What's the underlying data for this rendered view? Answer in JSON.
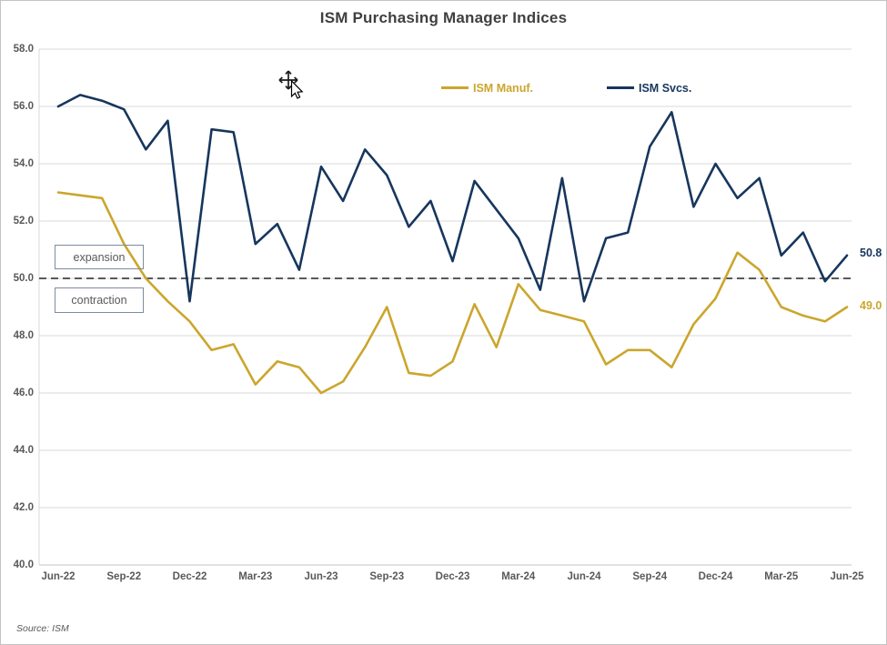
{
  "title": "ISM Purchasing Manager Indices",
  "legend": [
    {
      "label": "ISM Manuf.",
      "color": "#CBA62D"
    },
    {
      "label": "ISM Svcs.",
      "color": "#17365D"
    }
  ],
  "annotations": {
    "expansion": "expansion",
    "contraction": "contraction"
  },
  "end_labels": {
    "svcs": "50.8",
    "manuf": "49.0"
  },
  "source_note": "Source: ISM",
  "icons": {
    "cursor": "move-cursor-icon"
  },
  "colors": {
    "grid": "#D9D9D9",
    "axis": "#C6C6C6",
    "reference_line": "#595959",
    "axis_text": "#595959",
    "title_text": "#3F3F3F"
  },
  "chart_data": {
    "type": "line",
    "title": "ISM Purchasing Manager Indices",
    "x": [
      "Jun-22",
      "Jul-22",
      "Aug-22",
      "Sep-22",
      "Oct-22",
      "Nov-22",
      "Dec-22",
      "Jan-23",
      "Feb-23",
      "Mar-23",
      "Apr-23",
      "May-23",
      "Jun-23",
      "Jul-23",
      "Aug-23",
      "Sep-23",
      "Oct-23",
      "Nov-23",
      "Dec-23",
      "Jan-24",
      "Feb-24",
      "Mar-24",
      "Apr-24",
      "May-24",
      "Jun-24",
      "Jul-24",
      "Aug-24",
      "Sep-24",
      "Oct-24",
      "Nov-24",
      "Dec-24",
      "Jan-25",
      "Feb-25",
      "Mar-25",
      "Apr-25",
      "May-25",
      "Jun-25"
    ],
    "x_tick_labels": [
      "Jun-22",
      "Sep-22",
      "Dec-22",
      "Mar-23",
      "Jun-23",
      "Sep-23",
      "Dec-23",
      "Mar-24",
      "Jun-24",
      "Sep-24",
      "Dec-24",
      "Mar-25",
      "Jun-25"
    ],
    "y_ticks": [
      40,
      42,
      44,
      46,
      48,
      50,
      52,
      54,
      56,
      58
    ],
    "y_tick_labels": [
      "40.0",
      "42.0",
      "44.0",
      "46.0",
      "48.0",
      "50.0",
      "52.0",
      "54.0",
      "56.0",
      "58.0"
    ],
    "ylim": [
      40,
      58
    ],
    "grid": "horizontal",
    "legend_position": "top",
    "reference_line": {
      "value": 50.0,
      "style": "dashed",
      "label_above": "expansion",
      "label_below": "contraction"
    },
    "series": [
      {
        "name": "ISM Manuf.",
        "color": "#CBA62D",
        "end_label": "49.0",
        "values": [
          53.0,
          52.9,
          52.8,
          51.2,
          50.0,
          49.2,
          48.5,
          47.5,
          47.7,
          46.3,
          47.1,
          46.9,
          46.0,
          46.4,
          47.6,
          49.0,
          46.7,
          46.6,
          47.1,
          49.1,
          47.6,
          49.8,
          48.9,
          48.7,
          48.5,
          47.0,
          47.5,
          47.5,
          46.9,
          48.4,
          49.3,
          50.9,
          50.3,
          49.0,
          48.7,
          48.5,
          49.0
        ]
      },
      {
        "name": "ISM Svcs.",
        "color": "#17365D",
        "end_label": "50.8",
        "values": [
          56.0,
          56.4,
          56.2,
          55.9,
          54.5,
          55.5,
          49.2,
          55.2,
          55.1,
          51.2,
          51.9,
          50.3,
          53.9,
          52.7,
          54.5,
          53.6,
          51.8,
          52.7,
          50.6,
          53.4,
          52.4,
          51.4,
          49.6,
          53.5,
          49.2,
          51.4,
          51.6,
          54.6,
          55.8,
          52.5,
          54.0,
          52.8,
          53.5,
          50.8,
          51.6,
          49.9,
          50.8
        ]
      }
    ]
  }
}
